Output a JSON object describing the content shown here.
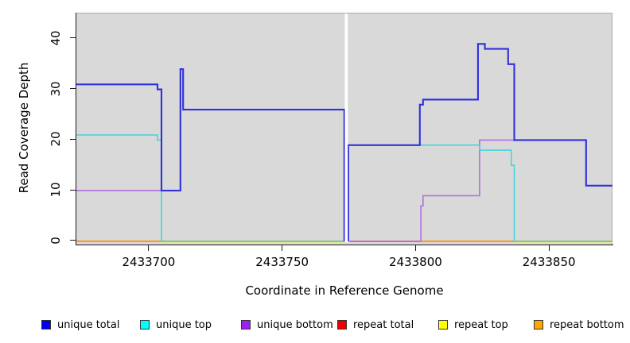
{
  "chart_data": {
    "type": "line",
    "step": true,
    "title": "",
    "xlabel": "Coordinate in Reference Genome",
    "ylabel": "Read Coverage Depth",
    "xlim": [
      2433672.9,
      2433873.8
    ],
    "ylim": [
      -0.8,
      45.0
    ],
    "xticks": [
      2433700,
      2433750,
      2433800,
      2433850
    ],
    "yticks": [
      0,
      10,
      20,
      30,
      40
    ],
    "grid": false,
    "panel_background": "#d9d9d9",
    "gap_band": {
      "from": 2433773.5,
      "to": 2433774.6,
      "color": "#ffffff"
    },
    "series": [
      {
        "name": "unique bottom",
        "color": "#b06fe0",
        "width": 1.6,
        "drawn": true,
        "runs": [
          [
            [
              2433672.9,
              10
            ],
            [
              2433711.9,
              10
            ],
            [
              2433711.9,
              34
            ],
            [
              2433712.9,
              34
            ],
            [
              2433712.9,
              26
            ],
            [
              2433773.3,
              26
            ],
            [
              2433773.3,
              0
            ]
          ],
          [
            [
              2433802.0,
              0
            ],
            [
              2433802.0,
              7
            ],
            [
              2433802.8,
              7
            ],
            [
              2433802.8,
              9
            ],
            [
              2433824.0,
              9
            ],
            [
              2433824.0,
              20
            ],
            [
              2433863.9,
              20
            ],
            [
              2433863.9,
              11
            ],
            [
              2433873.8,
              11
            ]
          ]
        ]
      },
      {
        "name": "unique top",
        "color": "#3ed3dc",
        "width": 1.5,
        "drawn": true,
        "runs": [
          [
            [
              2433672.9,
              21
            ],
            [
              2433703.3,
              21
            ],
            [
              2433703.3,
              20
            ],
            [
              2433704.8,
              20
            ],
            [
              2433704.8,
              0
            ]
          ],
          [
            [
              2433774.8,
              0
            ],
            [
              2433774.8,
              19
            ],
            [
              2433824.0,
              19
            ],
            [
              2433824.0,
              18
            ],
            [
              2433835.9,
              18
            ],
            [
              2433835.9,
              15
            ],
            [
              2433837.0,
              15
            ],
            [
              2433837.0,
              0
            ]
          ]
        ]
      },
      {
        "name": "unique total",
        "color": "#3030dd",
        "width": 2.1,
        "drawn": true,
        "runs": [
          [
            [
              2433672.9,
              31
            ],
            [
              2433703.3,
              31
            ],
            [
              2433703.3,
              30
            ],
            [
              2433704.8,
              30
            ],
            [
              2433704.8,
              10
            ],
            [
              2433711.9,
              10
            ],
            [
              2433711.9,
              34
            ],
            [
              2433712.9,
              34
            ],
            [
              2433712.9,
              26
            ],
            [
              2433773.3,
              26
            ],
            [
              2433773.3,
              0
            ]
          ],
          [
            [
              2433774.8,
              0
            ],
            [
              2433774.8,
              19
            ],
            [
              2433801.6,
              19
            ],
            [
              2433801.6,
              27
            ],
            [
              2433802.8,
              27
            ],
            [
              2433802.8,
              28
            ],
            [
              2433823.4,
              28
            ],
            [
              2433823.4,
              39
            ],
            [
              2433826.0,
              39
            ],
            [
              2433826.0,
              38
            ],
            [
              2433834.7,
              38
            ],
            [
              2433834.7,
              35
            ],
            [
              2433837.0,
              35
            ],
            [
              2433837.0,
              20
            ],
            [
              2433863.9,
              20
            ],
            [
              2433863.9,
              11
            ],
            [
              2433873.8,
              11
            ]
          ]
        ]
      },
      {
        "name": "repeat total",
        "color": "#ee0000",
        "width": 1.4,
        "drawn": false,
        "runs": [
          [
            [
              2433672.9,
              0
            ],
            [
              2433873.8,
              0
            ]
          ]
        ]
      },
      {
        "name": "repeat top",
        "color": "#ffff00",
        "width": 1.4,
        "drawn": false,
        "runs": [
          [
            [
              2433672.9,
              0
            ],
            [
              2433873.8,
              0
            ]
          ]
        ]
      },
      {
        "name": "repeat bottom",
        "color": "#ffa500",
        "width": 1.8,
        "drawn": false,
        "runs": [
          [
            [
              2433672.9,
              0
            ],
            [
              2433873.8,
              0
            ]
          ]
        ]
      }
    ],
    "baseline_segments": [
      {
        "from": 2433672.9,
        "to": 2433704.3,
        "color": "#ff9517",
        "w": 2.0
      },
      {
        "from": 2433704.3,
        "to": 2433773.3,
        "color": "#5dba5d",
        "w": 1.4,
        "under": "#e8e89b"
      },
      {
        "from": 2433775.2,
        "to": 2433802.0,
        "color": "#cf4f9f",
        "w": 1.6
      },
      {
        "from": 2433802.0,
        "to": 2433837.0,
        "color": "#ff9517",
        "w": 2.0
      },
      {
        "from": 2433837.0,
        "to": 2433873.8,
        "color": "#5dba5d",
        "w": 1.4,
        "under": "#e8e89b"
      }
    ]
  },
  "legend": {
    "items": [
      {
        "label": "unique total",
        "color": "#0000ee"
      },
      {
        "label": "unique top",
        "color": "#00ffff"
      },
      {
        "label": "unique bottom",
        "color": "#a020f0"
      },
      {
        "label": "repeat total",
        "color": "#ee0000"
      },
      {
        "label": "repeat top",
        "color": "#ffff00"
      },
      {
        "label": "repeat bottom",
        "color": "#ffa500"
      }
    ]
  }
}
